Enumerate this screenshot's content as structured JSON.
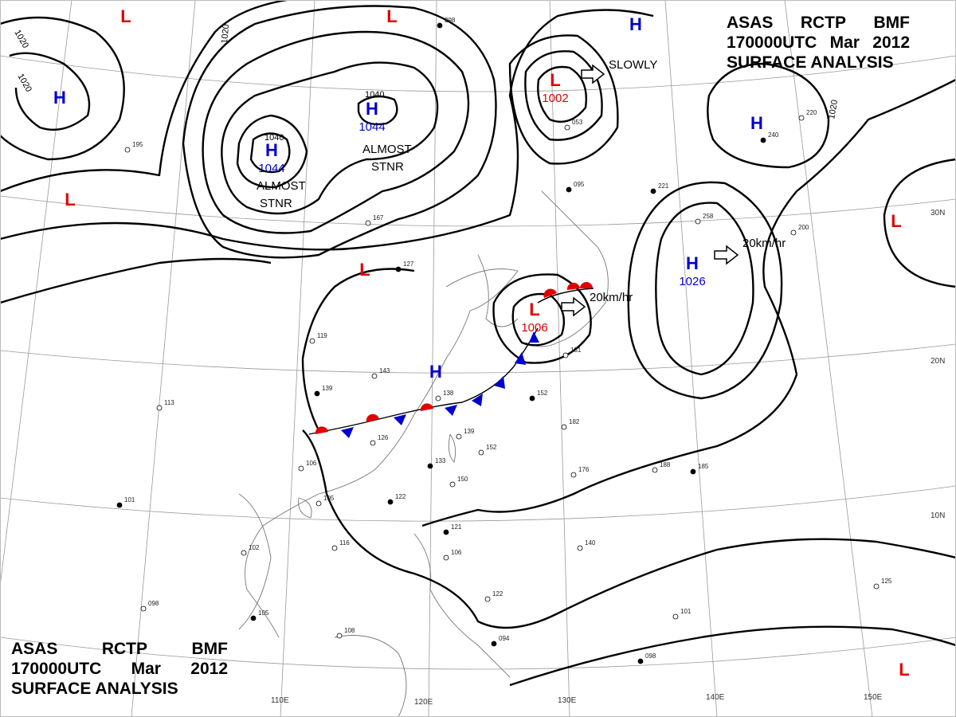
{
  "header": {
    "row1": [
      "ASAS",
      "RCTP",
      "BMF"
    ],
    "row2": [
      "170000UTC",
      "Mar",
      "2012"
    ],
    "row3": "SURFACE ANALYSIS"
  },
  "footer": {
    "row1": [
      "ASAS",
      "RCTP",
      "BMF"
    ],
    "row2": [
      "170000UTC",
      "Mar",
      "2012"
    ],
    "row3": "SURFACE ANALYSIS"
  },
  "colors": {
    "low": "#e00000",
    "high": "#0000cc",
    "isobar": "#000000",
    "grid": "#888888",
    "coast": "#666666"
  },
  "map_labels": {
    "pressure_centers": [
      {
        "id": "low-1",
        "kind": "L",
        "value": ""
      },
      {
        "id": "low-2",
        "kind": "L",
        "value": ""
      },
      {
        "id": "low-3",
        "kind": "L",
        "value": ""
      },
      {
        "id": "low-4",
        "kind": "L",
        "value": ""
      },
      {
        "id": "low-5",
        "kind": "L",
        "value": "1002"
      },
      {
        "id": "low-6",
        "kind": "L",
        "value": "1006"
      },
      {
        "id": "low-7",
        "kind": "L",
        "value": ""
      },
      {
        "id": "low-8",
        "kind": "L",
        "value": ""
      },
      {
        "id": "high-1",
        "kind": "H",
        "value": ""
      },
      {
        "id": "high-2",
        "kind": "H",
        "value": ""
      },
      {
        "id": "high-3",
        "kind": "H",
        "value": "1044"
      },
      {
        "id": "high-4",
        "kind": "H",
        "value": "1044"
      },
      {
        "id": "high-5",
        "kind": "H",
        "value": ""
      },
      {
        "id": "high-6",
        "kind": "H",
        "value": "1026"
      },
      {
        "id": "high-7",
        "kind": "H",
        "value": ""
      }
    ],
    "notes": {
      "almost_stnr_1": [
        "ALMOST",
        "STNR"
      ],
      "almost_stnr_2": [
        "ALMOST",
        "STNR"
      ],
      "slowly": "SLOWLY",
      "speed_1": "20km/hr",
      "speed_2": "20km/hr"
    },
    "isobar_labels": [
      "1020",
      "1020",
      "1020",
      "1040",
      "1040",
      "1020"
    ],
    "longitudes": [
      "110E",
      "120E",
      "130E",
      "140E",
      "150E"
    ],
    "latitudes": [
      "30N",
      "20N",
      "10N"
    ],
    "stations": [
      "298",
      "195",
      "167",
      "127",
      "119",
      "143",
      "139",
      "138",
      "126",
      "152",
      "182",
      "139",
      "133",
      "150",
      "152",
      "122",
      "176",
      "188",
      "185",
      "106",
      "105",
      "101",
      "116",
      "102",
      "121",
      "106",
      "122",
      "094",
      "113",
      "098",
      "105",
      "108",
      "101",
      "098",
      "125",
      "140",
      "221",
      "258",
      "200",
      "240",
      "220",
      "053",
      "095",
      "131"
    ]
  }
}
